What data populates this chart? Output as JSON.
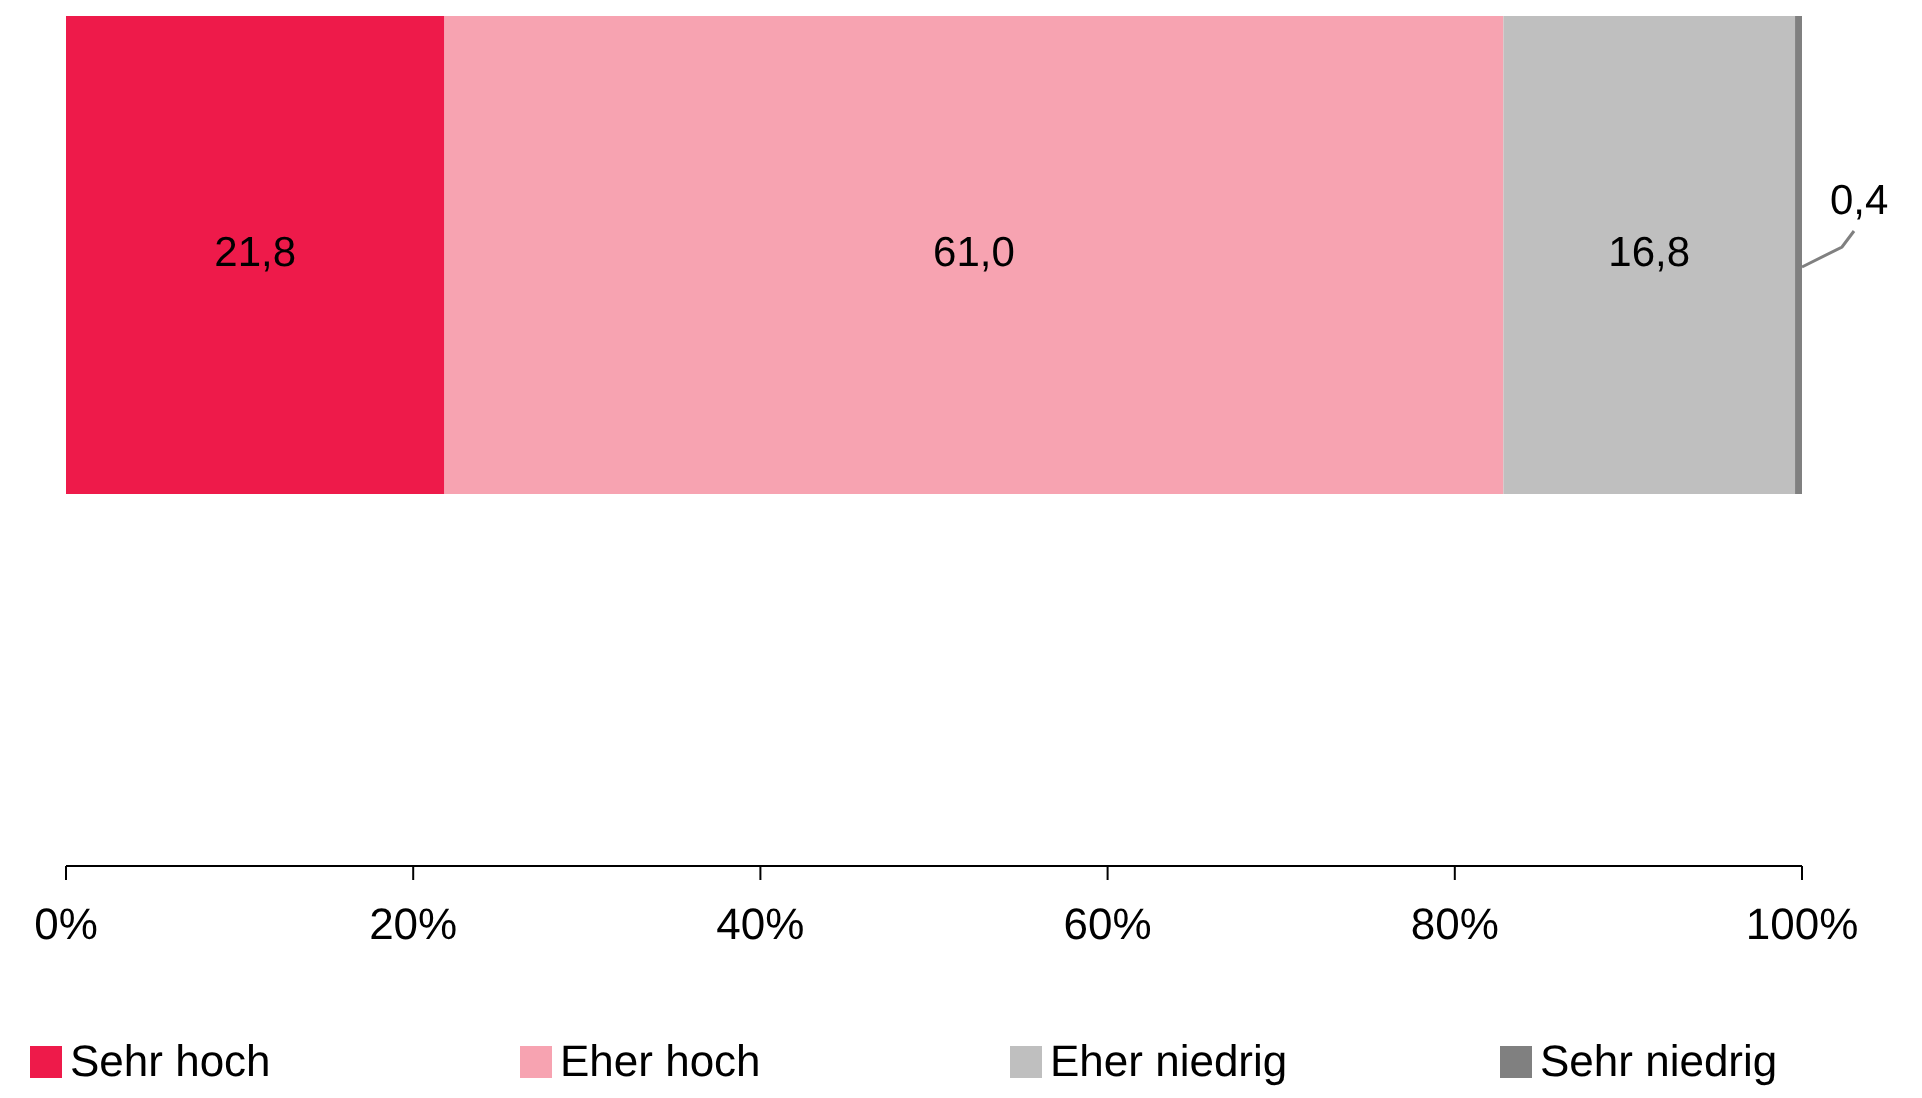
{
  "chart_data": {
    "type": "bar",
    "orientation": "horizontal",
    "stacked": true,
    "categories": [
      null
    ],
    "series": [
      {
        "name": "Sehr hoch",
        "color": "#ee1a4a",
        "values": [
          21.8
        ],
        "value_labels": [
          "21,8"
        ]
      },
      {
        "name": "Eher hoch",
        "color": "#f7a3b1",
        "values": [
          61.0
        ],
        "value_labels": [
          "61,0"
        ]
      },
      {
        "name": "Eher niedrig",
        "color": "#bfbfbf",
        "values": [
          16.8
        ],
        "value_labels": [
          "16,8"
        ]
      },
      {
        "name": "Sehr niedrig",
        "color": "#808080",
        "values": [
          0.4
        ],
        "value_labels": [
          "0,4"
        ]
      }
    ],
    "xlim": [
      0,
      100
    ],
    "xticks": [
      {
        "value": 0,
        "label": "0%"
      },
      {
        "value": 20,
        "label": "20%"
      },
      {
        "value": 40,
        "label": "40%"
      },
      {
        "value": 60,
        "label": "60%"
      },
      {
        "value": 80,
        "label": "80%"
      },
      {
        "value": 100,
        "label": "100%"
      }
    ],
    "grid": false,
    "legend": "bottom"
  }
}
